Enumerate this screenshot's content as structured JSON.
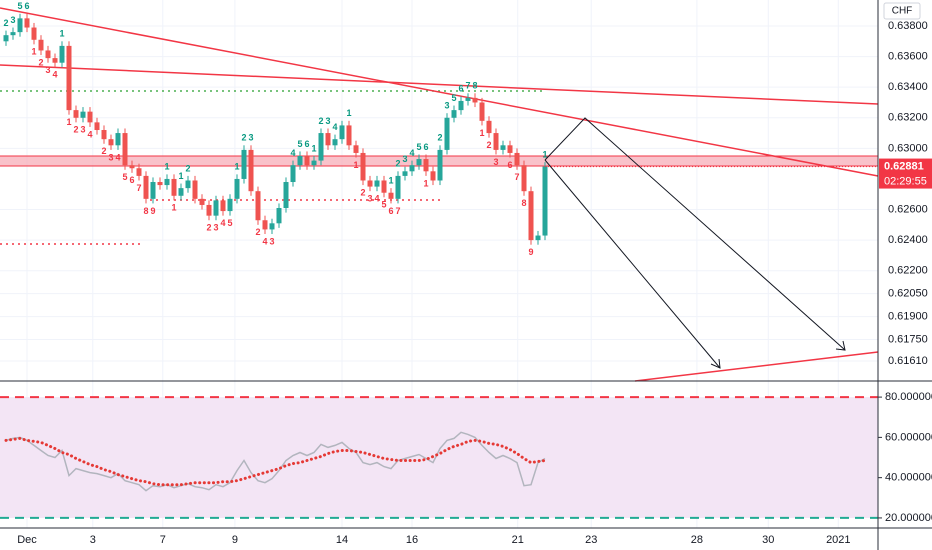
{
  "currency": "CHF",
  "countdown": "02:29:55",
  "chart_data": [
    {
      "type": "candlestick",
      "up_color": "#26a69a",
      "down_color": "#ef5350",
      "last_price_color": "#f23645",
      "td_up_color": "#089981",
      "td_down_color": "#f23645",
      "ylim": [
        0.61479,
        0.6397
      ],
      "xlim": [
        -0.857,
        124.57
      ],
      "grid": true,
      "yticks": [
        {
          "value": 0.638,
          "label": "0.63800"
        },
        {
          "value": 0.636,
          "label": "0.63600"
        },
        {
          "value": 0.634,
          "label": "0.63400"
        },
        {
          "value": 0.632,
          "label": "0.63200"
        },
        {
          "value": 0.63,
          "label": "0.63000"
        },
        {
          "value": 0.626,
          "label": "0.62600"
        },
        {
          "value": 0.624,
          "label": "0.62400"
        },
        {
          "value": 0.622,
          "label": "0.62200"
        },
        {
          "value": 0.6205,
          "label": "0.62050"
        },
        {
          "value": 0.619,
          "label": "0.61900"
        },
        {
          "value": 0.6175,
          "label": "0.61750"
        },
        {
          "value": 0.6161,
          "label": "0.61610"
        }
      ],
      "xticks": [
        {
          "value": 3,
          "label": "Dec"
        },
        {
          "value": 12.4,
          "label": "3"
        },
        {
          "value": 22.4,
          "label": "7"
        },
        {
          "value": 32.7,
          "label": "9"
        },
        {
          "value": 48,
          "label": "14"
        },
        {
          "value": 58,
          "label": "16"
        },
        {
          "value": 73.1,
          "label": "21"
        },
        {
          "value": 83.6,
          "label": "23"
        },
        {
          "value": 98.7,
          "label": "28"
        },
        {
          "value": 108.9,
          "label": "30"
        },
        {
          "value": 118.9,
          "label": "2021"
        }
      ],
      "open": [
        0.637,
        0.6374,
        0.6376,
        0.6385,
        0.6379,
        0.6371,
        0.6364,
        0.6359,
        0.6356,
        0.6367,
        0.6325,
        0.632,
        0.6324,
        0.6317,
        0.6312,
        0.6306,
        0.6302,
        0.631,
        0.6289,
        0.6287,
        0.6282,
        0.6267,
        0.6278,
        0.6276,
        0.628,
        0.6269,
        0.6274,
        0.6279,
        0.6267,
        0.6263,
        0.6256,
        0.6266,
        0.6259,
        0.6267,
        0.628,
        0.6299,
        0.6272,
        0.6253,
        0.6247,
        0.6251,
        0.6261,
        0.6278,
        0.6289,
        0.6295,
        0.6289,
        0.6292,
        0.631,
        0.6302,
        0.6306,
        0.6315,
        0.6302,
        0.6297,
        0.6279,
        0.6275,
        0.6279,
        0.6271,
        0.6267,
        0.6282,
        0.6285,
        0.6289,
        0.6293,
        0.6285,
        0.6279,
        0.6299,
        0.632,
        0.6325,
        0.6331,
        0.6333,
        0.633,
        0.6318,
        0.631,
        0.6299,
        0.6302,
        0.6297,
        0.6289,
        0.6272,
        0.624,
        0.6243
      ],
      "high": [
        0.6377,
        0.6379,
        0.6388,
        0.6388,
        0.6382,
        0.6374,
        0.6367,
        0.6362,
        0.637,
        0.637,
        0.6328,
        0.6327,
        0.6327,
        0.632,
        0.6315,
        0.6309,
        0.6313,
        0.6313,
        0.6292,
        0.629,
        0.6285,
        0.6281,
        0.6281,
        0.6283,
        0.6283,
        0.6277,
        0.6282,
        0.6282,
        0.627,
        0.6266,
        0.6269,
        0.6269,
        0.627,
        0.6283,
        0.6302,
        0.6302,
        0.6275,
        0.6256,
        0.6254,
        0.6264,
        0.6281,
        0.6292,
        0.6298,
        0.6298,
        0.6295,
        0.6313,
        0.6313,
        0.6309,
        0.6318,
        0.6318,
        0.6305,
        0.63,
        0.6282,
        0.6282,
        0.6282,
        0.6274,
        0.6285,
        0.6288,
        0.6292,
        0.6296,
        0.6296,
        0.6288,
        0.6302,
        0.6323,
        0.6328,
        0.6334,
        0.6336,
        0.6336,
        0.6333,
        0.6321,
        0.6313,
        0.6305,
        0.6305,
        0.63,
        0.6292,
        0.6275,
        0.6246,
        0.6291
      ],
      "low": [
        0.6367,
        0.6371,
        0.6373,
        0.6376,
        0.6368,
        0.6361,
        0.6356,
        0.6353,
        0.6353,
        0.6322,
        0.6317,
        0.6317,
        0.6314,
        0.6309,
        0.6303,
        0.6299,
        0.6299,
        0.6286,
        0.6284,
        0.6279,
        0.6264,
        0.6264,
        0.6273,
        0.6273,
        0.6266,
        0.6266,
        0.6271,
        0.6264,
        0.626,
        0.6253,
        0.6253,
        0.6256,
        0.6256,
        0.6264,
        0.6277,
        0.6269,
        0.625,
        0.6244,
        0.6244,
        0.6248,
        0.6258,
        0.6275,
        0.6286,
        0.6286,
        0.6286,
        0.6289,
        0.6299,
        0.6299,
        0.6303,
        0.6299,
        0.6294,
        0.6276,
        0.6272,
        0.6272,
        0.6268,
        0.6264,
        0.6264,
        0.6279,
        0.6282,
        0.6286,
        0.6282,
        0.6276,
        0.6276,
        0.6296,
        0.6317,
        0.6322,
        0.6328,
        0.6327,
        0.6315,
        0.6307,
        0.6296,
        0.6296,
        0.6294,
        0.6286,
        0.6269,
        0.6237,
        0.6237,
        0.624
      ],
      "close": [
        0.6374,
        0.6376,
        0.6385,
        0.6379,
        0.6371,
        0.6364,
        0.6359,
        0.6356,
        0.6367,
        0.6325,
        0.632,
        0.6324,
        0.6317,
        0.6312,
        0.6306,
        0.6302,
        0.631,
        0.6289,
        0.6287,
        0.6282,
        0.6267,
        0.6278,
        0.6276,
        0.628,
        0.6269,
        0.6274,
        0.6279,
        0.6267,
        0.6263,
        0.6256,
        0.6266,
        0.6259,
        0.6267,
        0.628,
        0.6299,
        0.6272,
        0.6253,
        0.6247,
        0.6251,
        0.6261,
        0.6278,
        0.6289,
        0.6295,
        0.6289,
        0.6292,
        0.631,
        0.6302,
        0.6306,
        0.6315,
        0.6302,
        0.6297,
        0.6279,
        0.6275,
        0.6279,
        0.6271,
        0.6267,
        0.6282,
        0.6285,
        0.6289,
        0.6293,
        0.6285,
        0.6279,
        0.6299,
        0.632,
        0.6325,
        0.6331,
        0.6333,
        0.633,
        0.6318,
        0.631,
        0.6299,
        0.6302,
        0.6297,
        0.6289,
        0.6272,
        0.624,
        0.6243,
        0.62881
      ],
      "td_labels": [
        {
          "index": 0,
          "label": "2",
          "side": "up"
        },
        {
          "index": 1,
          "label": "3",
          "side": "up"
        },
        {
          "index": 2,
          "label": "5",
          "side": "up"
        },
        {
          "index": 3,
          "label": "6",
          "side": "up"
        },
        {
          "index": 8,
          "label": "1",
          "side": "up"
        },
        {
          "index": 23,
          "label": "1",
          "side": "up"
        },
        {
          "index": 25,
          "label": "1",
          "side": "up"
        },
        {
          "index": 26,
          "label": "2",
          "side": "up"
        },
        {
          "index": 33,
          "label": "1",
          "side": "up"
        },
        {
          "index": 34,
          "label": "2",
          "side": "up"
        },
        {
          "index": 35,
          "label": "3",
          "side": "up"
        },
        {
          "index": 41,
          "label": "4",
          "side": "up"
        },
        {
          "index": 42,
          "label": "5",
          "side": "up"
        },
        {
          "index": 43,
          "label": "6",
          "side": "up"
        },
        {
          "index": 44,
          "label": "1",
          "side": "up"
        },
        {
          "index": 45,
          "label": "2",
          "side": "up"
        },
        {
          "index": 46,
          "label": "3",
          "side": "up"
        },
        {
          "index": 47,
          "label": "4",
          "side": "up"
        },
        {
          "index": 49,
          "label": "1",
          "side": "up"
        },
        {
          "index": 55,
          "label": "1",
          "side": "up"
        },
        {
          "index": 56,
          "label": "2",
          "side": "up"
        },
        {
          "index": 57,
          "label": "3",
          "side": "up"
        },
        {
          "index": 58,
          "label": "4",
          "side": "up"
        },
        {
          "index": 59,
          "label": "5",
          "side": "up"
        },
        {
          "index": 60,
          "label": "6",
          "side": "up"
        },
        {
          "index": 62,
          "label": "2",
          "side": "up"
        },
        {
          "index": 63,
          "label": "3",
          "side": "up"
        },
        {
          "index": 64,
          "label": "5",
          "side": "up"
        },
        {
          "index": 65,
          "label": "6",
          "side": "up"
        },
        {
          "index": 66,
          "label": "7",
          "side": "up"
        },
        {
          "index": 67,
          "label": "8",
          "side": "up"
        },
        {
          "index": 77,
          "label": "1",
          "side": "up"
        },
        {
          "index": 4,
          "label": "1",
          "side": "down"
        },
        {
          "index": 5,
          "label": "2",
          "side": "down"
        },
        {
          "index": 6,
          "label": "3",
          "side": "down"
        },
        {
          "index": 7,
          "label": "4",
          "side": "down"
        },
        {
          "index": 9,
          "label": "1",
          "side": "down"
        },
        {
          "index": 10,
          "label": "2",
          "side": "down"
        },
        {
          "index": 11,
          "label": "3",
          "side": "down"
        },
        {
          "index": 12,
          "label": "4",
          "side": "down"
        },
        {
          "index": 14,
          "label": "2",
          "side": "down"
        },
        {
          "index": 15,
          "label": "3",
          "side": "down"
        },
        {
          "index": 16,
          "label": "4",
          "side": "down"
        },
        {
          "index": 17,
          "label": "5",
          "side": "down"
        },
        {
          "index": 18,
          "label": "6",
          "side": "down"
        },
        {
          "index": 19,
          "label": "7",
          "side": "down"
        },
        {
          "index": 20,
          "label": "8",
          "side": "down"
        },
        {
          "index": 21,
          "label": "9",
          "side": "down"
        },
        {
          "index": 24,
          "label": "1",
          "side": "down"
        },
        {
          "index": 29,
          "label": "2",
          "side": "down"
        },
        {
          "index": 30,
          "label": "3",
          "side": "down"
        },
        {
          "index": 31,
          "label": "4",
          "side": "down"
        },
        {
          "index": 32,
          "label": "5",
          "side": "down"
        },
        {
          "index": 36,
          "label": "2",
          "side": "down"
        },
        {
          "index": 37,
          "label": "4",
          "side": "down"
        },
        {
          "index": 38,
          "label": "3",
          "side": "down"
        },
        {
          "index": 50,
          "label": "1",
          "side": "down"
        },
        {
          "index": 51,
          "label": "2",
          "side": "down"
        },
        {
          "index": 52,
          "label": "3",
          "side": "down"
        },
        {
          "index": 53,
          "label": "4",
          "side": "down"
        },
        {
          "index": 54,
          "label": "5",
          "side": "down"
        },
        {
          "index": 55,
          "label": "6",
          "side": "down"
        },
        {
          "index": 56,
          "label": "7",
          "side": "down"
        },
        {
          "index": 60,
          "label": "1",
          "side": "down"
        },
        {
          "index": 68,
          "label": "1",
          "side": "down"
        },
        {
          "index": 69,
          "label": "2",
          "side": "down"
        },
        {
          "index": 70,
          "label": "3",
          "side": "down"
        },
        {
          "index": 72,
          "label": "6",
          "side": "down"
        },
        {
          "index": 73,
          "label": "7",
          "side": "down"
        },
        {
          "index": 74,
          "label": "8",
          "side": "down"
        },
        {
          "index": 75,
          "label": "9",
          "side": "down"
        }
      ]
    },
    {
      "type": "line",
      "xlim": [
        -0.857,
        124.57
      ],
      "ylim": [
        15,
        87.5
      ],
      "band_color": "#f3e5f5",
      "yticks": [
        {
          "value": 80,
          "label": "80.000000"
        },
        {
          "value": 60,
          "label": "60.000000"
        },
        {
          "value": 40,
          "label": "40.000000"
        },
        {
          "value": 20,
          "label": "20.000000"
        }
      ],
      "band_lines": [
        {
          "value": 80,
          "color": "#f23645"
        },
        {
          "value": 20,
          "color": "#22ab94"
        }
      ],
      "series": [
        {
          "color": "#b2b5be",
          "style": "solid",
          "values": [
            58.5,
            59.5,
            60,
            58.5,
            56,
            53.5,
            51,
            50,
            53.5,
            41,
            44.5,
            43.5,
            42.5,
            42,
            41,
            40,
            42,
            38.5,
            37.5,
            36.5,
            33.5,
            36,
            35.5,
            36.5,
            35,
            36,
            37,
            35.5,
            35,
            34,
            36.5,
            35.5,
            37.5,
            43.5,
            48.5,
            42.5,
            38.5,
            37.5,
            39.5,
            43.5,
            48.5,
            51,
            52.5,
            51,
            52.5,
            56.5,
            55,
            56,
            57.5,
            54.5,
            52.5,
            47.5,
            46.5,
            47.5,
            45.5,
            44.5,
            48.5,
            49.5,
            50.5,
            51.5,
            49.5,
            47.5,
            54.5,
            58.5,
            59.5,
            62.5,
            61.5,
            60,
            56,
            52.5,
            49.5,
            51,
            49.5,
            47.5,
            36,
            36.5,
            47.5,
            49.5
          ]
        },
        {
          "color": "#e53935",
          "style": "dotted",
          "values": [
            58.5,
            59,
            59.5,
            58.5,
            58,
            57.5,
            56,
            54.5,
            52.5,
            51.5,
            49.5,
            48,
            46.5,
            45.5,
            44,
            43,
            41.5,
            40.5,
            39.5,
            38.5,
            38,
            37,
            36.5,
            36.5,
            36.5,
            36.5,
            37,
            37.5,
            37.5,
            37.5,
            37.5,
            38,
            38,
            38.5,
            39.5,
            40.5,
            41.5,
            42.5,
            43.5,
            44.5,
            46,
            47,
            47.5,
            48.5,
            49.5,
            50.5,
            52,
            53,
            53.5,
            53.5,
            53,
            52.5,
            51.5,
            50.5,
            49.5,
            49,
            48.5,
            48.5,
            48.5,
            48.5,
            49,
            50.5,
            52,
            54,
            55.5,
            56.5,
            58,
            58.5,
            58,
            57,
            56.5,
            55.5,
            54,
            52,
            49.5,
            47.5,
            48,
            48.5
          ]
        }
      ]
    }
  ]
}
